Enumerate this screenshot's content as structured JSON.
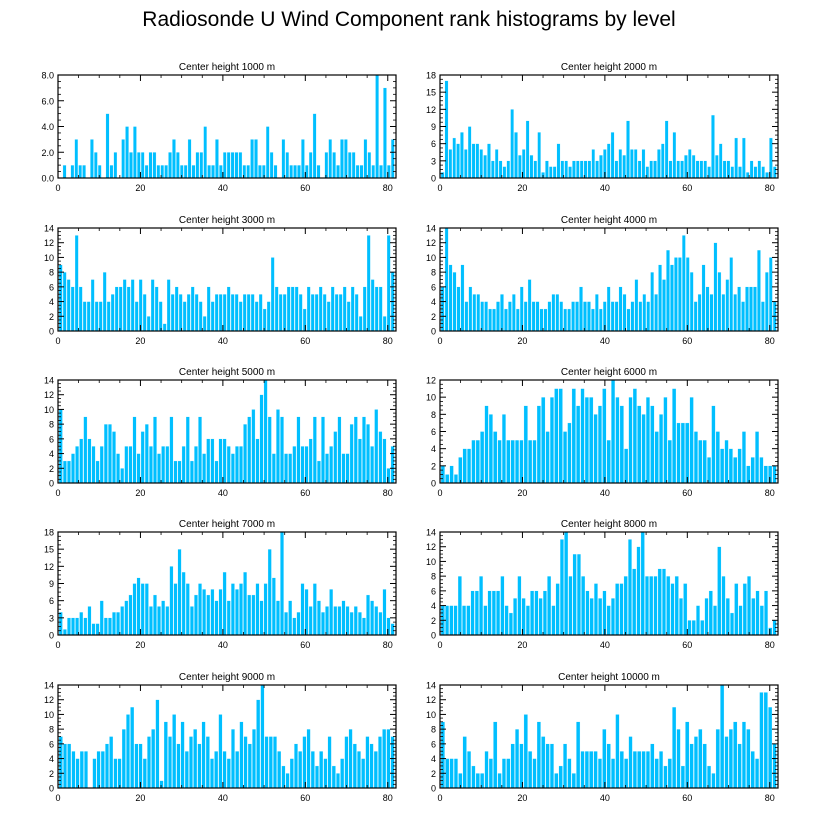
{
  "title": "Radiosonde U Wind Component rank histograms by level",
  "colors": {
    "bar": "#00BFFF",
    "bar_edge": "#ffffff",
    "axis": "#000000"
  },
  "chart_data": [
    {
      "type": "bar",
      "title": "Center height 1000 m",
      "xlim": [
        0,
        82
      ],
      "xticks": [
        0,
        20,
        40,
        60,
        80
      ],
      "ylim": [
        0,
        8
      ],
      "yticks": [
        "0.0",
        "2.0",
        "4.0",
        "6.0",
        "8.0"
      ],
      "values": [
        0,
        1,
        0,
        1,
        3,
        1,
        1,
        0,
        3,
        2,
        1,
        0,
        5,
        1,
        2,
        0,
        3,
        4,
        2,
        4,
        2,
        2,
        1,
        2,
        2,
        1,
        1,
        1,
        2,
        3,
        2,
        1,
        1,
        3,
        1,
        2,
        2,
        4,
        1,
        1,
        3,
        1,
        2,
        2,
        2,
        2,
        2,
        1,
        1,
        3,
        3,
        1,
        1,
        4,
        2,
        1,
        0,
        3,
        2,
        1,
        1,
        1,
        3,
        1,
        2,
        5,
        1,
        0,
        2,
        3,
        2,
        1,
        3,
        3,
        2,
        2,
        1,
        1,
        3,
        2,
        1,
        8,
        1,
        7,
        1,
        3
      ]
    },
    {
      "type": "bar",
      "title": "Center height 2000 m",
      "xlim": [
        0,
        82
      ],
      "xticks": [
        0,
        20,
        40,
        60,
        80
      ],
      "ylim": [
        0,
        18
      ],
      "yticks": [
        "0",
        "3",
        "6",
        "9",
        "12",
        "15",
        "18"
      ],
      "values": [
        1,
        17,
        5,
        7,
        6,
        8,
        5,
        9,
        6,
        6,
        5,
        4,
        6,
        3,
        5,
        3,
        2,
        3,
        12,
        8,
        4,
        5,
        10,
        4,
        3,
        8,
        1,
        3,
        2,
        2,
        6,
        3,
        3,
        2,
        3,
        3,
        3,
        3,
        3,
        5,
        3,
        4,
        5,
        6,
        8,
        3,
        5,
        4,
        10,
        5,
        5,
        3,
        5,
        2,
        3,
        3,
        5,
        6,
        10,
        3,
        8,
        3,
        3,
        4,
        5,
        4,
        3,
        3,
        3,
        2,
        11,
        4,
        6,
        3,
        3,
        2,
        7,
        2,
        7,
        1,
        3,
        2,
        3,
        2,
        1,
        7,
        2
      ]
    },
    {
      "type": "bar",
      "title": "Center height 3000 m",
      "xlim": [
        0,
        82
      ],
      "xticks": [
        0,
        20,
        40,
        60,
        80
      ],
      "ylim": [
        0,
        14
      ],
      "yticks": [
        "0",
        "2",
        "4",
        "6",
        "8",
        "10",
        "12",
        "14"
      ],
      "values": [
        9,
        8,
        7,
        6,
        13,
        6,
        4,
        4,
        7,
        4,
        4,
        8,
        4,
        5,
        6,
        6,
        7,
        6,
        7,
        4,
        7,
        5,
        2,
        7,
        6,
        4,
        1,
        7,
        5,
        6,
        5,
        4,
        5,
        6,
        5,
        4,
        2,
        6,
        4,
        5,
        5,
        5,
        6,
        5,
        5,
        4,
        5,
        5,
        5,
        4,
        5,
        3,
        4,
        10,
        6,
        5,
        5,
        6,
        6,
        6,
        5,
        3,
        6,
        5,
        5,
        6,
        5,
        4,
        6,
        5,
        5,
        6,
        4,
        6,
        5,
        2,
        6,
        13,
        7,
        6,
        6,
        2,
        13,
        8
      ]
    },
    {
      "type": "bar",
      "title": "Center height 4000 m",
      "xlim": [
        0,
        82
      ],
      "xticks": [
        0,
        20,
        40,
        60,
        80
      ],
      "ylim": [
        0,
        14
      ],
      "yticks": [
        "0",
        "2",
        "4",
        "6",
        "8",
        "10",
        "12",
        "14"
      ],
      "values": [
        6,
        14,
        9,
        8,
        6,
        9,
        4,
        6,
        5,
        5,
        4,
        4,
        3,
        3,
        4,
        5,
        3,
        4,
        5,
        3,
        6,
        4,
        7,
        4,
        4,
        3,
        3,
        4,
        5,
        5,
        4,
        3,
        3,
        4,
        4,
        6,
        4,
        4,
        3,
        5,
        3,
        4,
        6,
        4,
        4,
        6,
        5,
        3,
        4,
        7,
        4,
        5,
        4,
        8,
        5,
        9,
        7,
        11,
        9,
        10,
        10,
        13,
        10,
        8,
        4,
        5,
        9,
        6,
        5,
        12,
        8,
        5,
        7,
        10,
        5,
        6,
        4,
        6,
        6,
        6,
        11,
        4,
        8,
        10,
        4
      ]
    },
    {
      "type": "bar",
      "title": "Center height 5000 m",
      "xlim": [
        0,
        82
      ],
      "xticks": [
        0,
        20,
        40,
        60,
        80
      ],
      "ylim": [
        0,
        14
      ],
      "yticks": [
        "0",
        "2",
        "4",
        "6",
        "8",
        "10",
        "12",
        "14"
      ],
      "values": [
        10,
        3,
        3,
        4,
        5,
        6,
        9,
        6,
        5,
        3,
        5,
        8,
        8,
        7,
        4,
        2,
        5,
        5,
        9,
        4,
        7,
        8,
        5,
        9,
        4,
        5,
        5,
        9,
        3,
        3,
        5,
        9,
        3,
        5,
        9,
        4,
        6,
        6,
        3,
        6,
        6,
        5,
        4,
        5,
        5,
        8,
        9,
        10,
        6,
        12,
        14,
        9,
        4,
        10,
        9,
        4,
        4,
        5,
        9,
        5,
        5,
        6,
        9,
        3,
        9,
        4,
        5,
        7,
        9,
        4,
        4,
        8,
        9,
        6,
        9,
        8,
        5,
        10,
        7,
        6,
        2,
        5
      ]
    },
    {
      "type": "bar",
      "title": "Center height 6000 m",
      "xlim": [
        0,
        82
      ],
      "xticks": [
        0,
        20,
        40,
        60,
        80
      ],
      "ylim": [
        0,
        12
      ],
      "yticks": [
        "0",
        "2",
        "4",
        "6",
        "8",
        "10",
        "12"
      ],
      "values": [
        2,
        1,
        2,
        1,
        3,
        4,
        4,
        5,
        5,
        6,
        9,
        8,
        6,
        5,
        8,
        5,
        5,
        5,
        5,
        9,
        5,
        5,
        9,
        10,
        6,
        10,
        11,
        11,
        6,
        7,
        11,
        9,
        11,
        10,
        10,
        8,
        9,
        11,
        5,
        12,
        10,
        9,
        4,
        10,
        11,
        9,
        8,
        10,
        9,
        6,
        8,
        10,
        5,
        11,
        7,
        7,
        7,
        10,
        6,
        5,
        5,
        3,
        9,
        6,
        4,
        5,
        4,
        3,
        4,
        6,
        2,
        3,
        6,
        3,
        2,
        2,
        2
      ]
    },
    {
      "type": "bar",
      "title": "Center height 7000 m",
      "xlim": [
        0,
        82
      ],
      "xticks": [
        0,
        20,
        40,
        60,
        80
      ],
      "ylim": [
        0,
        18
      ],
      "yticks": [
        "0",
        "3",
        "6",
        "9",
        "12",
        "15",
        "18"
      ],
      "values": [
        4,
        1,
        3,
        3,
        3,
        4,
        3,
        5,
        2,
        2,
        6,
        3,
        3,
        4,
        4,
        5,
        6,
        7,
        9,
        10,
        9,
        9,
        5,
        7,
        5,
        6,
        5,
        12,
        9,
        15,
        11,
        9,
        5,
        7,
        9,
        8,
        7,
        8,
        6,
        8,
        11,
        6,
        9,
        8,
        9,
        11,
        7,
        7,
        9,
        6,
        9,
        15,
        10,
        6,
        18,
        4,
        6,
        3,
        4,
        9,
        8,
        5,
        9,
        6,
        4,
        5,
        8,
        5,
        5,
        6,
        5,
        4,
        5,
        4,
        3,
        7,
        6,
        5,
        4,
        8,
        3,
        2
      ]
    },
    {
      "type": "bar",
      "title": "Center height 8000 m",
      "xlim": [
        0,
        82
      ],
      "xticks": [
        0,
        20,
        40,
        60,
        80
      ],
      "ylim": [
        0,
        14
      ],
      "yticks": [
        "0",
        "2",
        "4",
        "6",
        "8",
        "10",
        "12",
        "14"
      ],
      "values": [
        4,
        4,
        4,
        4,
        8,
        4,
        4,
        6,
        6,
        8,
        4,
        6,
        6,
        6,
        8,
        4,
        3,
        5,
        8,
        5,
        4,
        6,
        6,
        5,
        6,
        8,
        4,
        7,
        13,
        14,
        8,
        11,
        11,
        8,
        6,
        5,
        7,
        5,
        6,
        4,
        5,
        7,
        7,
        8,
        13,
        9,
        12,
        14,
        8,
        8,
        8,
        9,
        9,
        8,
        7,
        8,
        5,
        7,
        2,
        2,
        4,
        2,
        5,
        6,
        4,
        12,
        8,
        5,
        3,
        7,
        4,
        7,
        8,
        5,
        6,
        4,
        6,
        1,
        2
      ]
    },
    {
      "type": "bar",
      "title": "Center height 9000 m",
      "xlim": [
        0,
        82
      ],
      "xticks": [
        0,
        20,
        40,
        60,
        80
      ],
      "ylim": [
        0,
        14
      ],
      "yticks": [
        "0",
        "2",
        "4",
        "6",
        "8",
        "10",
        "12",
        "14"
      ],
      "values": [
        7,
        6,
        6,
        5,
        4,
        5,
        5,
        0,
        4,
        5,
        5,
        6,
        7,
        4,
        4,
        8,
        10,
        11,
        6,
        6,
        4,
        7,
        8,
        12,
        1,
        9,
        7,
        10,
        6,
        9,
        5,
        7,
        8,
        6,
        9,
        7,
        4,
        5,
        10,
        5,
        4,
        8,
        5,
        9,
        7,
        6,
        8,
        12,
        14,
        7,
        7,
        7,
        5,
        3,
        2,
        4,
        6,
        5,
        7,
        8,
        5,
        3,
        5,
        4,
        7,
        3,
        2,
        4,
        7,
        8,
        6,
        5,
        4,
        7,
        6,
        5,
        7,
        8,
        8,
        7
      ]
    },
    {
      "type": "bar",
      "title": "Center height 10000 m",
      "xlim": [
        0,
        82
      ],
      "xticks": [
        0,
        20,
        40,
        60,
        80
      ],
      "ylim": [
        0,
        14
      ],
      "yticks": [
        "0",
        "2",
        "4",
        "6",
        "8",
        "10",
        "12",
        "14"
      ],
      "values": [
        9,
        4,
        4,
        4,
        2,
        7,
        5,
        3,
        2,
        2,
        5,
        4,
        9,
        2,
        4,
        4,
        6,
        8,
        6,
        10,
        5,
        4,
        9,
        7,
        6,
        6,
        2,
        3,
        6,
        4,
        2,
        9,
        5,
        5,
        5,
        5,
        4,
        8,
        6,
        4,
        10,
        5,
        4,
        7,
        5,
        5,
        5,
        5,
        6,
        4,
        5,
        3,
        4,
        11,
        8,
        3,
        9,
        6,
        7,
        8,
        6,
        3,
        2,
        8,
        14,
        7,
        8,
        9,
        6,
        9,
        8,
        5,
        4,
        13,
        13,
        11,
        6
      ]
    }
  ]
}
